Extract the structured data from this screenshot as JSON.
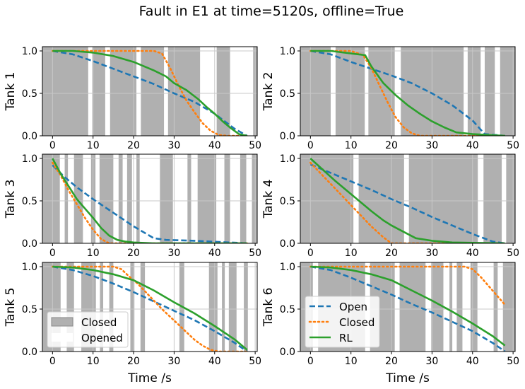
{
  "figure": {
    "title": "Fault in E1 at time=5120s, offline=True",
    "xlabel": "Time /s",
    "colors": {
      "open": "#1f77b4",
      "closed": "#ff7f0e",
      "rl": "#2ca02c",
      "shade": "#b0b0b0",
      "grid": "#c8c8c8"
    }
  },
  "legends": {
    "state": [
      {
        "label": "Closed",
        "kind": "patch",
        "color": "#b0b0b0"
      },
      {
        "label": "Opened",
        "kind": "patch",
        "color": "#ffffff"
      }
    ],
    "lines": [
      {
        "label": "Open",
        "style": "dashed",
        "color": "#1f77b4"
      },
      {
        "label": "Closed",
        "style": "dotted",
        "color": "#ff7f0e"
      },
      {
        "label": "RL",
        "style": "solid",
        "color": "#2ca02c"
      }
    ]
  },
  "chart_data": [
    {
      "type": "line",
      "ylabel": "Tank 1",
      "xlim": [
        -2.5,
        50.5
      ],
      "ylim": [
        0,
        1.05
      ],
      "xticks": [
        0,
        10,
        20,
        30,
        40,
        50
      ],
      "yticks": [
        0.0,
        0.5,
        1.0
      ],
      "closed_intervals": [
        [
          -2.5,
          8.8
        ],
        [
          9.8,
          13.0
        ],
        [
          14.2,
          20.7
        ],
        [
          21.8,
          27.5
        ],
        [
          28.5,
          36.4
        ],
        [
          40.5,
          43.8
        ],
        [
          49.5,
          50.5
        ]
      ],
      "series": [
        {
          "name": "Open",
          "style": "dashed",
          "x": [
            0,
            5,
            10,
            15,
            20,
            25,
            30,
            35,
            40,
            45,
            48
          ],
          "y": [
            1.0,
            0.96,
            0.88,
            0.79,
            0.7,
            0.61,
            0.5,
            0.4,
            0.26,
            0.08,
            0.0
          ]
        },
        {
          "name": "Closed",
          "style": "dotted",
          "x": [
            0,
            10,
            15,
            20,
            25,
            27,
            29,
            31,
            33,
            35,
            37,
            39,
            41,
            43,
            48
          ],
          "y": [
            1.0,
            1.0,
            1.0,
            1.0,
            1.0,
            0.97,
            0.8,
            0.6,
            0.42,
            0.28,
            0.15,
            0.06,
            0.01,
            0.0,
            0.0
          ]
        },
        {
          "name": "RL",
          "style": "solid",
          "x": [
            0,
            5,
            10,
            15,
            20,
            25,
            28,
            30,
            33,
            36,
            38,
            40,
            42,
            44,
            46,
            48
          ],
          "y": [
            1.0,
            1.0,
            0.98,
            0.94,
            0.87,
            0.77,
            0.7,
            0.62,
            0.54,
            0.43,
            0.34,
            0.26,
            0.17,
            0.09,
            0.02,
            0.0
          ]
        }
      ]
    },
    {
      "type": "line",
      "ylabel": "Tank 2",
      "xlim": [
        -2.5,
        50.5
      ],
      "ylim": [
        0,
        1.05
      ],
      "xticks": [
        0,
        10,
        20,
        30,
        40,
        50
      ],
      "yticks": [
        0.0,
        0.5,
        1.0
      ],
      "closed_intervals": [
        [
          -2.5,
          5.0
        ],
        [
          6.2,
          13.4
        ],
        [
          14.3,
          20.8
        ],
        [
          22.3,
          37.8
        ],
        [
          38.8,
          42.0
        ],
        [
          43.0,
          45.5
        ],
        [
          46.8,
          50.5
        ]
      ],
      "series": [
        {
          "name": "Open",
          "style": "dashed",
          "x": [
            0,
            5,
            10,
            15,
            20,
            25,
            30,
            35,
            40,
            43,
            48
          ],
          "y": [
            1.0,
            0.96,
            0.87,
            0.79,
            0.71,
            0.62,
            0.5,
            0.36,
            0.18,
            0.02,
            0.0
          ]
        },
        {
          "name": "Closed",
          "style": "dotted",
          "x": [
            0,
            10,
            13,
            15,
            17,
            19,
            21,
            23,
            25,
            27,
            30,
            48
          ],
          "y": [
            1.0,
            1.0,
            0.95,
            0.8,
            0.6,
            0.4,
            0.22,
            0.1,
            0.03,
            0.0,
            0.0,
            0.0
          ]
        },
        {
          "name": "RL",
          "style": "solid",
          "x": [
            0,
            5,
            10,
            13.5,
            15,
            18,
            21,
            24,
            27,
            30,
            33,
            36,
            40,
            44,
            48
          ],
          "y": [
            1.0,
            1.0,
            0.97,
            0.95,
            0.82,
            0.62,
            0.48,
            0.36,
            0.26,
            0.17,
            0.1,
            0.04,
            0.02,
            0.01,
            0.0
          ]
        }
      ]
    },
    {
      "type": "line",
      "ylabel": "Tank 3",
      "xlim": [
        -2.5,
        50.5
      ],
      "ylim": [
        0,
        1.05
      ],
      "xticks": [
        0,
        10,
        20,
        30,
        40,
        50
      ],
      "yticks": [
        0.0,
        0.5,
        1.0
      ],
      "closed_intervals": [
        [
          -2.5,
          1.8
        ],
        [
          3.0,
          3.8
        ],
        [
          5.3,
          7.5
        ],
        [
          9.5,
          10.6
        ],
        [
          11.6,
          15.0
        ],
        [
          16.3,
          17.3
        ],
        [
          18.4,
          19.6
        ],
        [
          20.7,
          21.5
        ],
        [
          26.5,
          29.7
        ],
        [
          33.3,
          34.2
        ],
        [
          35.8,
          40.4
        ],
        [
          42.4,
          43.8
        ],
        [
          46.3,
          47.8
        ],
        [
          49.2,
          50.5
        ]
      ],
      "series": [
        {
          "name": "Open",
          "style": "dashed",
          "x": [
            0,
            3,
            6,
            10,
            15,
            20,
            25,
            28,
            35,
            48
          ],
          "y": [
            0.92,
            0.78,
            0.66,
            0.52,
            0.36,
            0.2,
            0.06,
            0.04,
            0.03,
            0.0
          ]
        },
        {
          "name": "Closed",
          "style": "dotted",
          "x": [
            0,
            2,
            4,
            6,
            8,
            10,
            12,
            14,
            16,
            48
          ],
          "y": [
            0.95,
            0.8,
            0.62,
            0.46,
            0.3,
            0.16,
            0.05,
            0.0,
            0.0,
            0.0
          ]
        },
        {
          "name": "RL",
          "style": "solid",
          "x": [
            0,
            2,
            4,
            6,
            8,
            10,
            12,
            14,
            16,
            18,
            20,
            25,
            48
          ],
          "y": [
            1.0,
            0.82,
            0.67,
            0.52,
            0.41,
            0.3,
            0.18,
            0.09,
            0.04,
            0.02,
            0.01,
            0.0,
            0.0
          ]
        }
      ]
    },
    {
      "type": "line",
      "ylabel": "Tank 4",
      "xlim": [
        -2.5,
        50.5
      ],
      "ylim": [
        0,
        1.05
      ],
      "xticks": [
        0,
        10,
        20,
        30,
        40,
        50
      ],
      "yticks": [
        0.0,
        0.5,
        1.0
      ],
      "closed_intervals": [
        [
          -2.5,
          10.6
        ],
        [
          11.9,
          23.1
        ],
        [
          24.3,
          41.3
        ],
        [
          42.7,
          47.2
        ],
        [
          48.3,
          50.5
        ]
      ],
      "series": [
        {
          "name": "Open",
          "style": "dashed",
          "x": [
            0,
            5,
            10,
            15,
            20,
            25,
            30,
            35,
            40,
            45,
            48
          ],
          "y": [
            0.93,
            0.83,
            0.73,
            0.63,
            0.52,
            0.42,
            0.31,
            0.21,
            0.11,
            0.02,
            0.0
          ]
        },
        {
          "name": "Closed",
          "style": "dotted",
          "x": [
            0,
            3,
            6,
            9,
            12,
            15,
            18,
            20,
            22,
            48
          ],
          "y": [
            0.95,
            0.8,
            0.65,
            0.5,
            0.35,
            0.2,
            0.07,
            0.0,
            0.0,
            0.0
          ]
        },
        {
          "name": "RL",
          "style": "solid",
          "x": [
            0,
            3,
            6,
            9,
            12,
            15,
            18,
            20,
            22,
            24,
            26,
            30,
            35,
            48
          ],
          "y": [
            1.0,
            0.87,
            0.74,
            0.62,
            0.5,
            0.38,
            0.27,
            0.21,
            0.16,
            0.11,
            0.06,
            0.03,
            0.01,
            0.0
          ]
        }
      ]
    },
    {
      "type": "line",
      "ylabel": "Tank 5",
      "xlim": [
        -2.5,
        50.5
      ],
      "ylim": [
        0,
        1.05
      ],
      "xticks": [
        0,
        10,
        20,
        30,
        40,
        50
      ],
      "yticks": [
        0.0,
        0.5,
        1.0
      ],
      "closed_intervals": [
        [
          -2.5,
          2.0
        ],
        [
          3.5,
          5.3
        ],
        [
          7.1,
          10.7
        ],
        [
          11.7,
          12.5
        ],
        [
          14.0,
          15.0
        ],
        [
          19.2,
          20.2
        ],
        [
          21.7,
          22.8
        ],
        [
          31.3,
          32.5
        ],
        [
          38.6,
          40.7
        ],
        [
          41.8,
          42.5
        ],
        [
          43.5,
          45.4
        ],
        [
          47.2,
          48.2
        ]
      ],
      "series": [
        {
          "name": "Open",
          "style": "dashed",
          "x": [
            0,
            5,
            10,
            15,
            20,
            25,
            30,
            35,
            40,
            45,
            48
          ],
          "y": [
            1.0,
            0.96,
            0.89,
            0.8,
            0.7,
            0.59,
            0.48,
            0.37,
            0.24,
            0.1,
            0.0
          ]
        },
        {
          "name": "Closed",
          "style": "dotted",
          "x": [
            0,
            10,
            15,
            17,
            19,
            21,
            23,
            25,
            27,
            29,
            31,
            33,
            35,
            37,
            39,
            41,
            48
          ],
          "y": [
            1.0,
            1.0,
            1.0,
            0.97,
            0.88,
            0.8,
            0.7,
            0.6,
            0.5,
            0.41,
            0.32,
            0.23,
            0.14,
            0.07,
            0.02,
            0.0,
            0.0
          ]
        },
        {
          "name": "RL",
          "style": "solid",
          "x": [
            0,
            5,
            10,
            15,
            20,
            25,
            30,
            35,
            40,
            45,
            48
          ],
          "y": [
            1.0,
            0.99,
            0.96,
            0.91,
            0.84,
            0.72,
            0.58,
            0.45,
            0.3,
            0.14,
            0.02
          ]
        }
      ]
    },
    {
      "type": "line",
      "ylabel": "Tank 6",
      "xlim": [
        -2.5,
        50.5
      ],
      "ylim": [
        0,
        1.05
      ],
      "xticks": [
        0,
        10,
        20,
        30,
        40,
        50
      ],
      "yticks": [
        0.0,
        0.5,
        1.0
      ],
      "closed_intervals": [
        [
          -2.5,
          0.6
        ],
        [
          1.9,
          13.5
        ],
        [
          14.7,
          20.8
        ],
        [
          22.0,
          28.4
        ],
        [
          29.8,
          32.8
        ],
        [
          34.3,
          35.0
        ],
        [
          36.1,
          37.5
        ],
        [
          39.5,
          41.2
        ],
        [
          45.2,
          46.2
        ],
        [
          47.5,
          50.5
        ]
      ],
      "series": [
        {
          "name": "Open",
          "style": "dashed",
          "x": [
            0,
            5,
            10,
            15,
            20,
            25,
            30,
            35,
            40,
            45,
            48
          ],
          "y": [
            1.0,
            0.96,
            0.87,
            0.77,
            0.67,
            0.56,
            0.46,
            0.35,
            0.24,
            0.1,
            0.0
          ]
        },
        {
          "name": "Closed",
          "style": "dotted",
          "x": [
            0,
            10,
            20,
            30,
            38,
            40,
            42,
            44,
            46,
            48
          ],
          "y": [
            1.0,
            1.0,
            1.0,
            1.0,
            1.0,
            0.97,
            0.88,
            0.77,
            0.66,
            0.55
          ]
        },
        {
          "name": "RL",
          "style": "solid",
          "x": [
            0,
            5,
            10,
            15,
            20,
            25,
            30,
            35,
            40,
            45,
            48
          ],
          "y": [
            1.0,
            0.99,
            0.96,
            0.91,
            0.84,
            0.72,
            0.6,
            0.47,
            0.33,
            0.18,
            0.07
          ]
        }
      ]
    }
  ]
}
